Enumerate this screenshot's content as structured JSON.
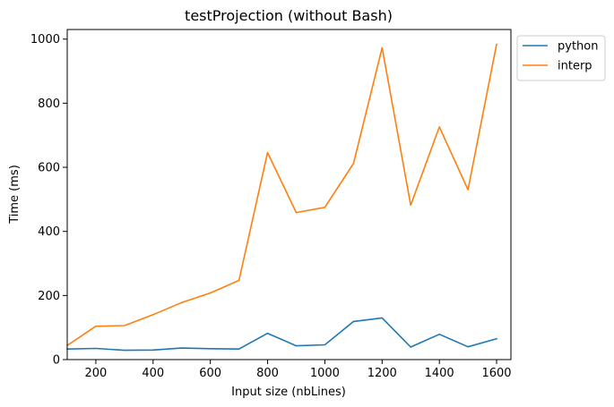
{
  "chart_data": {
    "type": "line",
    "title": "testProjection (without Bash)",
    "xlabel": "Input size (nbLines)",
    "ylabel": "Time (ms)",
    "x": [
      100,
      200,
      300,
      400,
      500,
      600,
      700,
      800,
      900,
      1000,
      1100,
      1200,
      1300,
      1400,
      1500,
      1600
    ],
    "xlim": [
      100,
      1650
    ],
    "ylim": [
      0,
      1030
    ],
    "xticks": [
      200,
      400,
      600,
      800,
      1000,
      1200,
      1400,
      1600
    ],
    "yticks": [
      0,
      200,
      400,
      600,
      800,
      1000
    ],
    "grid": false,
    "legend_position": "outside-top-right",
    "series": [
      {
        "name": "python",
        "color": "#1f77b4",
        "values": [
          33,
          35,
          29,
          30,
          36,
          34,
          33,
          82,
          43,
          46,
          119,
          130,
          39,
          79,
          40,
          65
        ]
      },
      {
        "name": "interp",
        "color": "#ff7f0e",
        "values": [
          44,
          104,
          106,
          140,
          178,
          208,
          247,
          646,
          459,
          475,
          612,
          973,
          482,
          726,
          530,
          984
        ]
      }
    ]
  }
}
